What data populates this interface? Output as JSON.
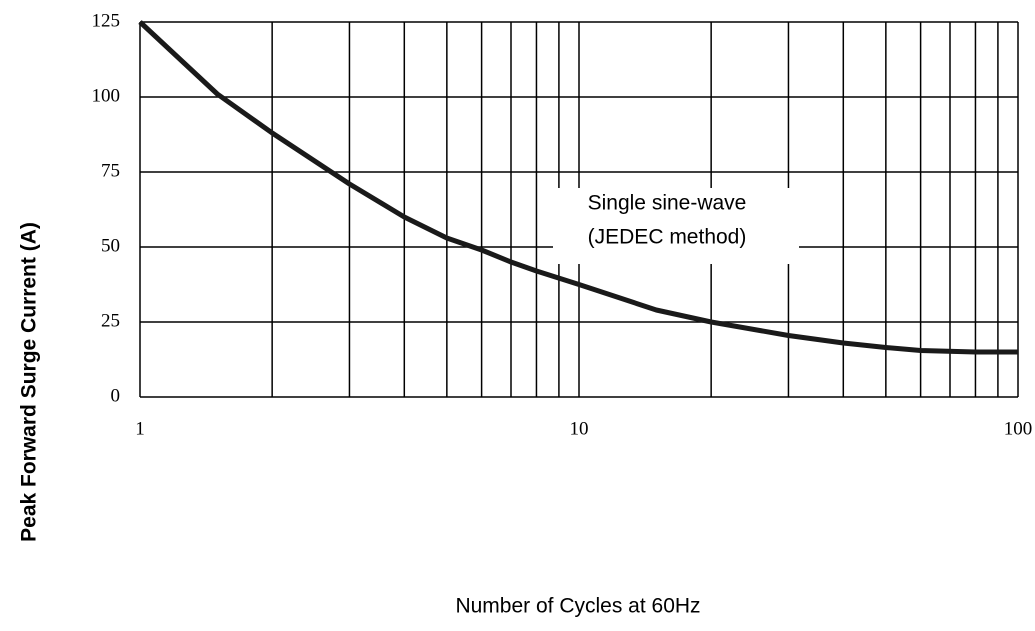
{
  "chart_data": {
    "type": "line",
    "x_label": "Number of Cycles at 60Hz",
    "y_label": "Peak Forward Surge Current (A)",
    "annotation": [
      "Single sine-wave",
      "(JEDEC method)"
    ],
    "x": [
      1,
      1.5,
      2,
      3,
      4,
      5,
      6,
      7,
      8,
      10,
      15,
      20,
      30,
      40,
      50,
      60,
      80,
      100
    ],
    "series": [
      {
        "name": "Peak Forward Surge Current",
        "color": "#1a1a1a",
        "values": [
          125,
          101,
          88,
          71,
          60,
          53,
          49,
          45,
          42,
          37.5,
          29,
          25,
          20.5,
          18,
          16.5,
          15.5,
          15,
          15
        ]
      }
    ],
    "xlog": true,
    "xlim": [
      1,
      100
    ],
    "xticks": [
      1,
      10,
      100
    ],
    "xminorticks": [
      2,
      3,
      4,
      5,
      6,
      7,
      8,
      9,
      20,
      30,
      40,
      50,
      60,
      70,
      80,
      90
    ],
    "ylim": [
      0,
      125
    ],
    "yticks": [
      0,
      25,
      50,
      75,
      100,
      125
    ],
    "grid": true
  }
}
